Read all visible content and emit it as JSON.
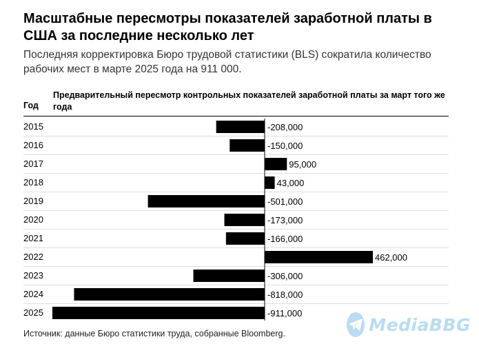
{
  "header": {
    "title": "Масштабные пересмотры показателей заработной платы в США за последние несколько лет",
    "subtitle": "Последняя корректировка Бюро трудовой статистики (BLS) сократила количество рабочих мест в марте 2025 года на 911 000."
  },
  "columns": {
    "year": "Год",
    "value": "Предварительный пересмотр контрольных показателей заработной платы за март того же года"
  },
  "source": "Источник: данные Бюро статистики труда, собранные Bloomberg.",
  "watermark": {
    "text": "MediaBBG",
    "icon": "telegram-paper-plane-icon",
    "color": "#b9dcf3"
  },
  "colors": {
    "bar": "#000000",
    "text": "#000000"
  },
  "chart_data": {
    "type": "bar",
    "orientation": "horizontal",
    "categories": [
      "2015",
      "2016",
      "2017",
      "2018",
      "2019",
      "2020",
      "2021",
      "2022",
      "2023",
      "2024",
      "2025"
    ],
    "values": [
      -208000,
      -150000,
      95000,
      43000,
      -501000,
      -173000,
      -166000,
      462000,
      -306000,
      -818000,
      -911000
    ],
    "value_labels": [
      "-208,000",
      "-150,000",
      "95,000",
      "43,000",
      "-501,000",
      "-173,000",
      "-166,000",
      "462,000",
      "-306,000",
      "-818,000",
      "-911,000"
    ],
    "xlim": [
      -911000,
      462000
    ],
    "grid": false,
    "legend": "none"
  }
}
